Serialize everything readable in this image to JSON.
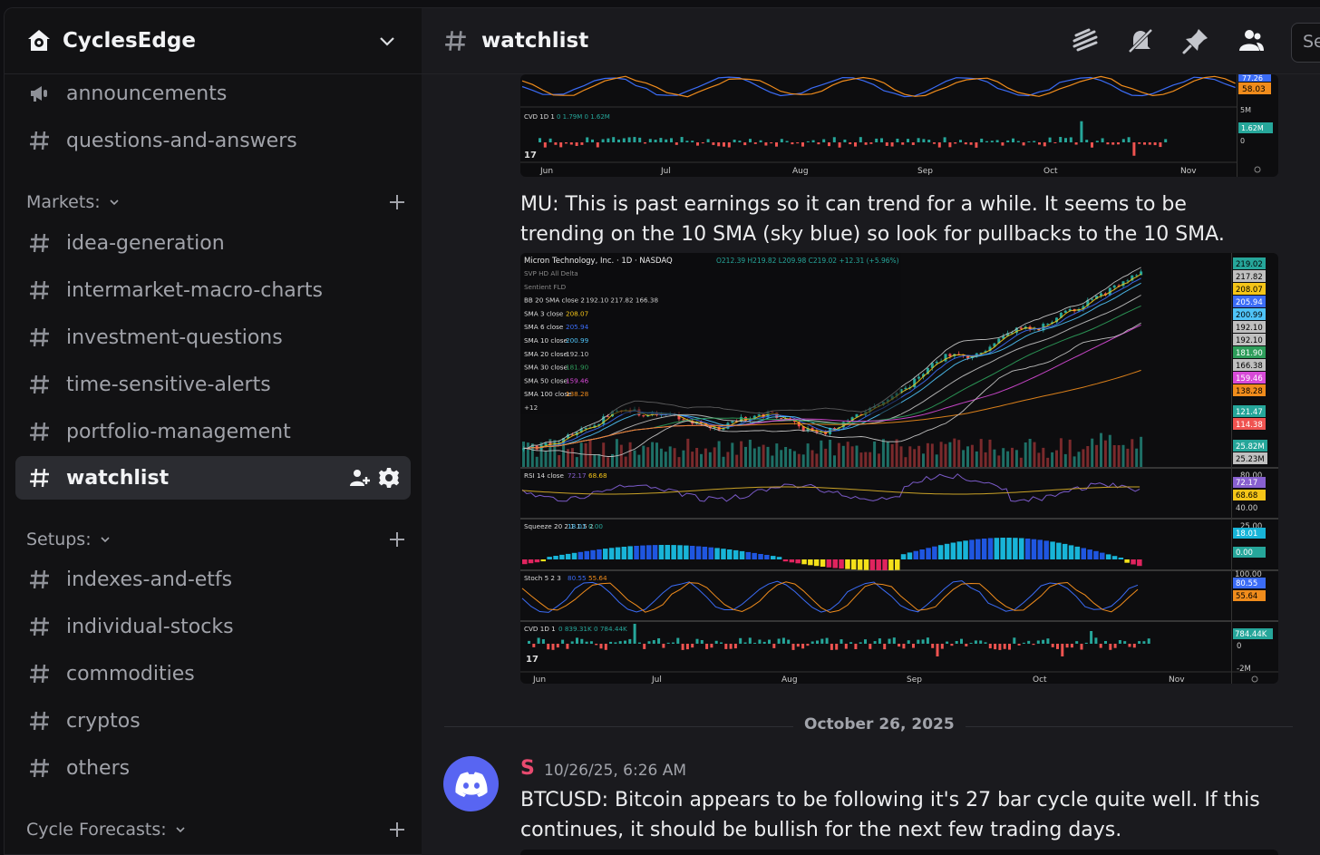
{
  "server": {
    "name": "CyclesEdge",
    "logo_icon": "house-gear-icon"
  },
  "sidebar": {
    "channels_top": [
      {
        "label": "announcements",
        "icon": "megaphone-icon"
      },
      {
        "label": "questions-and-answers",
        "icon": "hash-icon"
      }
    ],
    "categories": [
      {
        "label": "Markets:",
        "channels": [
          "idea-generation",
          "intermarket-macro-charts",
          "investment-questions",
          "time-sensitive-alerts",
          "portfolio-management",
          "watchlist"
        ]
      },
      {
        "label": "Setups:",
        "channels": [
          "indexes-and-etfs",
          "individual-stocks",
          "commodities",
          "cryptos",
          "others"
        ]
      },
      {
        "label": "Cycle Forecasts:",
        "channels": []
      }
    ],
    "active_channel": "watchlist"
  },
  "header": {
    "channel": "watchlist",
    "search_placeholder": "Search"
  },
  "messages": {
    "mu_text": "MU: This is past earnings so it can trend for a while. It seems to be trending on the 10 SMA (sky blue) so look for pullbacks to the 10 SMA.",
    "divider_date": "October 26, 2025",
    "btc_author": "S",
    "btc_time": "10/26/25, 6:26 AM",
    "btc_text": "BTCUSD: Bitcoin appears to be following it's 27 bar cycle quite well. If this continues, it should be bullish for the next trading days.",
    "btc_text_full": "BTCUSD: Bitcoin appears to be following it's 27 bar cycle quite well. If this continues, it should be bullish for the next few trading days."
  },
  "chart_top": {
    "stoch_values": [
      "77.26",
      "58.03"
    ],
    "cvd_label": "CVD 1D 1",
    "cvd_values": "0  1.79M  0  1.62M",
    "cvd_scale": [
      "5M",
      "1.62M",
      "0"
    ],
    "months": [
      "Jun",
      "Jul",
      "Aug",
      "Sep",
      "Oct",
      "Nov"
    ]
  },
  "chart_data": {
    "type": "line",
    "title": "Micron Technology, Inc. · 1D · NASDAQ",
    "ohlc": "O212.39  H219.82  L209.98  C219.02  +12.31 (+5.96%)",
    "x": [
      "Jun",
      "Jul",
      "Aug",
      "Sep",
      "Oct",
      "Nov"
    ],
    "indicators": [
      {
        "name": "SVP HD All Delta"
      },
      {
        "name": "Sentient FLD"
      },
      {
        "name": "BB 20 SMA close 2",
        "values": "192.10  217.82  166.38"
      },
      {
        "name": "SMA 3 close",
        "value": "208.07",
        "color": "#f5c518"
      },
      {
        "name": "SMA 6 close",
        "value": "205.94",
        "color": "#3b6cf6"
      },
      {
        "name": "SMA 10 close",
        "value": "200.99",
        "color": "#4fc3f7"
      },
      {
        "name": "SMA 20 close",
        "value": "192.10",
        "color": "#c0c0c0"
      },
      {
        "name": "SMA 30 close",
        "value": "181.90",
        "color": "#2e9e5b"
      },
      {
        "name": "SMA 50 close",
        "value": "159.46",
        "color": "#d84ad8"
      },
      {
        "name": "SMA 100 close",
        "value": "138.28",
        "color": "#f08c1c"
      }
    ],
    "extra": "+12",
    "price_scale": [
      {
        "v": "219.02",
        "bg": "#26a69a",
        "fg": "#000"
      },
      {
        "v": "217.82",
        "bg": "#c0c0c0",
        "fg": "#000"
      },
      {
        "v": "208.07",
        "bg": "#f5c518",
        "fg": "#000"
      },
      {
        "v": "205.94",
        "bg": "#3b6cf6",
        "fg": "#fff"
      },
      {
        "v": "200.99",
        "bg": "#4fc3f7",
        "fg": "#000"
      },
      {
        "v": "192.10",
        "bg": "#c0c0c0",
        "fg": "#000"
      },
      {
        "v": "192.10",
        "bg": "#c0c0c0",
        "fg": "#000"
      },
      {
        "v": "181.90",
        "bg": "#2e9e5b",
        "fg": "#fff"
      },
      {
        "v": "166.38",
        "bg": "#c0c0c0",
        "fg": "#000"
      },
      {
        "v": "159.46",
        "bg": "#d84ad8",
        "fg": "#fff"
      },
      {
        "v": "138.28",
        "bg": "#f08c1c",
        "fg": "#000"
      }
    ],
    "price_low": [
      {
        "v": "121.47",
        "bg": "#26a69a",
        "fg": "#fff"
      },
      {
        "v": "114.38",
        "bg": "#ef5350",
        "fg": "#fff"
      }
    ],
    "volume": {
      "values": [
        "25.82M",
        "25.23M"
      ]
    },
    "close_series": [
      92,
      95,
      98,
      104,
      110,
      118,
      121,
      116,
      119,
      114,
      110,
      107,
      113,
      116,
      118,
      113,
      106,
      104,
      109,
      118,
      125,
      130,
      140,
      152,
      160,
      158,
      163,
      172,
      180,
      178,
      186,
      192,
      198,
      205,
      212,
      219
    ],
    "rsi": {
      "label": "RSI 14 close",
      "values": [
        "72.17",
        "68.68"
      ],
      "scale": [
        "80.00",
        "72.17",
        "68.68",
        "40.00"
      ]
    },
    "squeeze": {
      "label": "Squeeze 20 2 1 1.5 2",
      "values": [
        "18.01",
        "0.00"
      ],
      "scale": [
        "25.00",
        "18.01",
        "0.00"
      ]
    },
    "stoch": {
      "label": "Stoch 5 2 3",
      "values": [
        "80.55",
        "55.64"
      ],
      "scale": [
        "100.00",
        "80.55",
        "55.64"
      ]
    },
    "cvd": {
      "label": "CVD 1D 1",
      "values": "0  839.31K  0  784.44K",
      "scale": [
        "784.44K",
        "0",
        "-2M"
      ]
    }
  }
}
